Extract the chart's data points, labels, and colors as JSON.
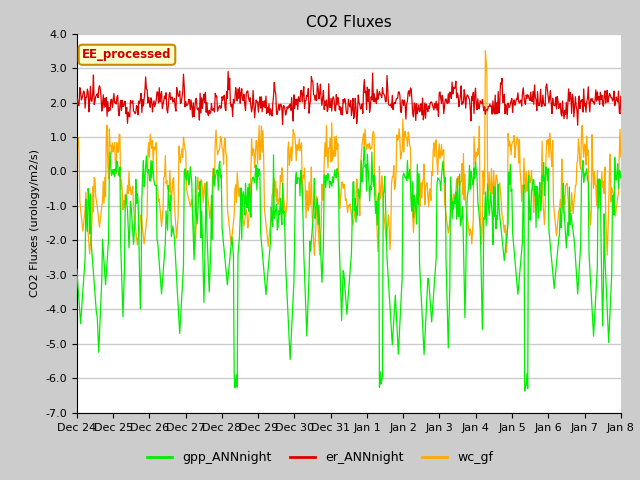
{
  "title": "CO2 Fluxes",
  "ylabel": "CO2 Fluxes (urology/m2/s)",
  "ylim": [
    -7.0,
    4.0
  ],
  "yticks": [
    -7.0,
    -6.0,
    -5.0,
    -4.0,
    -3.0,
    -2.0,
    -1.0,
    0.0,
    1.0,
    2.0,
    3.0,
    4.0
  ],
  "xtick_labels": [
    "Dec 24",
    "Dec 25",
    "Dec 26",
    "Dec 27",
    "Dec 28",
    "Dec 29",
    "Dec 30",
    "Dec 31",
    "Jan 1",
    "Jan 2",
    "Jan 3",
    "Jan 4",
    "Jan 5",
    "Jan 6",
    "Jan 7",
    "Jan 8"
  ],
  "n_days": 15,
  "points_per_day": 48,
  "color_gpp": "#00ee00",
  "color_er": "#dd0000",
  "color_wc": "#ffaa00",
  "legend_labels": [
    "gpp_ANNnight",
    "er_ANNnight",
    "wc_gf"
  ],
  "annotation_text": "EE_processed",
  "annotation_color": "#cc0000",
  "annotation_bg": "#ffffcc",
  "annotation_border": "#cc8800",
  "fig_bg_color": "#cccccc",
  "plot_bg_color": "#ffffff",
  "grid_color": "#cccccc",
  "title_fontsize": 11,
  "axis_fontsize": 8,
  "legend_fontsize": 9,
  "linewidth_gpp": 0.9,
  "linewidth_er": 0.9,
  "linewidth_wc": 0.9
}
